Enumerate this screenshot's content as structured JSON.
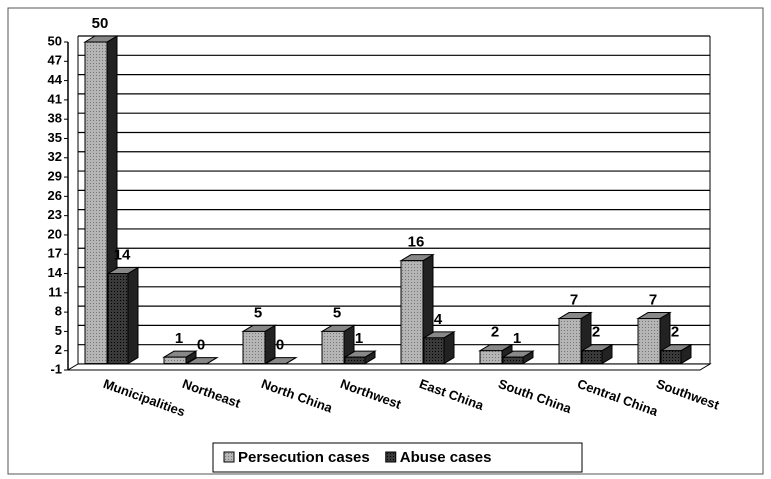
{
  "chart_data": {
    "type": "bar3d",
    "categories": [
      "Municipalities",
      "Northeast",
      "North China",
      "Northwest",
      "East China",
      "South China",
      "Central China",
      "Southwest"
    ],
    "series": [
      {
        "name": "Persecution cases",
        "color": "#a8a8a8",
        "values": [
          50,
          1,
          5,
          5,
          16,
          2,
          7,
          7
        ]
      },
      {
        "name": "Abuse cases",
        "color": "#3a3a3a",
        "values": [
          14,
          0,
          0,
          1,
          4,
          1,
          2,
          2
        ]
      }
    ],
    "ylim": [
      -1,
      50
    ],
    "yticks": [
      -1,
      2,
      5,
      8,
      11,
      14,
      17,
      20,
      23,
      26,
      29,
      32,
      35,
      38,
      41,
      44,
      47,
      50
    ],
    "grid": true,
    "legend": "bottom"
  }
}
